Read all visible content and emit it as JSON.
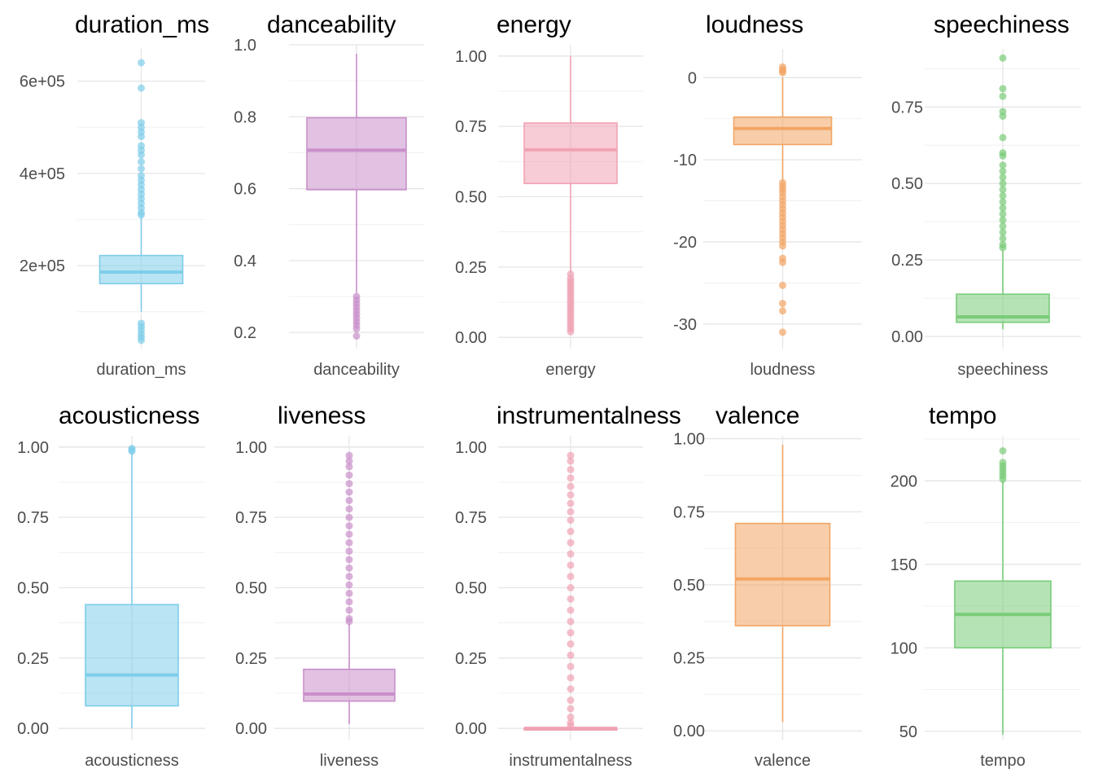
{
  "chart_data": [
    {
      "type": "boxplot",
      "title": "duration_ms",
      "category": "duration_ms",
      "color": "#7fcdea",
      "yticks": [
        200000,
        400000,
        600000
      ],
      "yticklabels": [
        "2e+05",
        "4e+05",
        "6e+05"
      ],
      "ylim": [
        20000,
        670000
      ],
      "box": {
        "lower_whisker": 100000,
        "q1": 161000,
        "median": 186000,
        "q3": 222000,
        "upper_whisker": 307000
      },
      "outliers": [
        640000,
        585000,
        510000,
        500000,
        490000,
        480000,
        460000,
        450000,
        440000,
        425000,
        410000,
        395000,
        385000,
        375000,
        365000,
        355000,
        345000,
        335000,
        325000,
        315000,
        310000,
        75000,
        68000,
        60000,
        52000,
        45000,
        38000
      ]
    },
    {
      "type": "boxplot",
      "title": "danceability",
      "category": "danceability",
      "color": "#c98fcb",
      "yticks": [
        0.2,
        0.4,
        0.6,
        0.8,
        1.0
      ],
      "yticklabels": [
        "0.2",
        "0.4",
        "0.6",
        "0.8",
        "1.0"
      ],
      "ylim": [
        0.155,
        1.0
      ],
      "box": {
        "lower_whisker": 0.31,
        "q1": 0.597,
        "median": 0.707,
        "q3": 0.797,
        "upper_whisker": 0.975
      },
      "outliers": [
        0.3,
        0.29,
        0.28,
        0.27,
        0.26,
        0.25,
        0.24,
        0.23,
        0.22,
        0.21,
        0.19
      ]
    },
    {
      "type": "boxplot",
      "title": "energy",
      "category": "energy",
      "color": "#f0a3b4",
      "yticks": [
        0,
        0.25,
        0.5,
        0.75,
        1.0
      ],
      "yticklabels": [
        "0.00",
        "0.25",
        "0.50",
        "0.75",
        "1.00"
      ],
      "ylim": [
        -0.04,
        1.04
      ],
      "box": {
        "lower_whisker": 0.23,
        "q1": 0.547,
        "median": 0.667,
        "q3": 0.762,
        "upper_whisker": 1.0
      },
      "outliers": [
        0.225,
        0.21,
        0.2,
        0.19,
        0.18,
        0.17,
        0.16,
        0.15,
        0.14,
        0.13,
        0.12,
        0.11,
        0.1,
        0.09,
        0.08,
        0.07,
        0.06,
        0.05,
        0.04,
        0.03,
        0.02
      ]
    },
    {
      "type": "boxplot",
      "title": "loudness",
      "category": "loudness",
      "color": "#f2a565",
      "yticks": [
        -30,
        -20,
        -10,
        0
      ],
      "yticklabels": [
        "-30",
        "-20",
        "-10",
        "0"
      ],
      "ylim": [
        -33,
        3.5
      ],
      "box": {
        "lower_whisker": -12.7,
        "q1": -8.15,
        "median": -6.2,
        "q3": -4.8,
        "upper_whisker": 0.0
      },
      "outliers": [
        1.3,
        1.0,
        0.8,
        0.6,
        -12.8,
        -13.2,
        -13.6,
        -14.0,
        -14.5,
        -15.0,
        -15.5,
        -16.0,
        -16.5,
        -17.0,
        -17.5,
        -18.0,
        -18.5,
        -19.0,
        -19.5,
        -20.0,
        -20.5,
        -22.0,
        -22.5,
        -25.3,
        -27.5,
        -28.4,
        -31.0
      ]
    },
    {
      "type": "boxplot",
      "title": "speechiness",
      "category": "speechiness",
      "color": "#79cc78",
      "yticks": [
        0,
        0.25,
        0.5,
        0.75
      ],
      "yticklabels": [
        "0.00",
        "0.25",
        "0.50",
        "0.75"
      ],
      "ylim": [
        -0.04,
        0.94
      ],
      "box": {
        "lower_whisker": 0.023,
        "q1": 0.046,
        "median": 0.064,
        "q3": 0.138,
        "upper_whisker": 0.28
      },
      "outliers": [
        0.91,
        0.81,
        0.785,
        0.735,
        0.72,
        0.65,
        0.6,
        0.59,
        0.56,
        0.54,
        0.52,
        0.5,
        0.48,
        0.46,
        0.44,
        0.42,
        0.4,
        0.38,
        0.36,
        0.34,
        0.32,
        0.3,
        0.29
      ]
    },
    {
      "type": "boxplot",
      "title": "acousticness",
      "category": "acousticness",
      "color": "#7fcdea",
      "yticks": [
        0,
        0.25,
        0.5,
        0.75,
        1.0
      ],
      "yticklabels": [
        "0.00",
        "0.25",
        "0.50",
        "0.75",
        "1.00"
      ],
      "ylim": [
        -0.04,
        1.04
      ],
      "box": {
        "lower_whisker": 0.0,
        "q1": 0.08,
        "median": 0.19,
        "q3": 0.44,
        "upper_whisker": 0.98
      },
      "outliers": [
        0.995,
        0.99,
        0.985
      ]
    },
    {
      "type": "boxplot",
      "title": "liveness",
      "category": "liveness",
      "color": "#c98fcb",
      "yticks": [
        0,
        0.25,
        0.5,
        0.75,
        1.0
      ],
      "yticklabels": [
        "0.00",
        "0.25",
        "0.50",
        "0.75",
        "1.00"
      ],
      "ylim": [
        -0.04,
        1.04
      ],
      "box": {
        "lower_whisker": 0.015,
        "q1": 0.097,
        "median": 0.122,
        "q3": 0.21,
        "upper_whisker": 0.37
      },
      "outliers": [
        0.97,
        0.95,
        0.93,
        0.9,
        0.87,
        0.84,
        0.81,
        0.78,
        0.75,
        0.72,
        0.69,
        0.66,
        0.63,
        0.6,
        0.57,
        0.54,
        0.51,
        0.48,
        0.45,
        0.42,
        0.39,
        0.38
      ]
    },
    {
      "type": "boxplot",
      "title": "instrumentalness",
      "category": "instrumentalness",
      "color": "#f0a3b4",
      "yticks": [
        0,
        0.25,
        0.5,
        0.75,
        1.0
      ],
      "yticklabels": [
        "0.00",
        "0.25",
        "0.50",
        "0.75",
        "1.00"
      ],
      "ylim": [
        -0.04,
        1.04
      ],
      "box": {
        "lower_whisker": 0.0,
        "q1": 0.0,
        "median": 0.0,
        "q3": 0.0,
        "upper_whisker": 0.0
      },
      "outliers": [
        0.97,
        0.95,
        0.92,
        0.89,
        0.86,
        0.83,
        0.8,
        0.77,
        0.74,
        0.7,
        0.66,
        0.62,
        0.58,
        0.54,
        0.5,
        0.46,
        0.42,
        0.38,
        0.34,
        0.3,
        0.26,
        0.22,
        0.18,
        0.14,
        0.1,
        0.07,
        0.04,
        0.02,
        0.01
      ]
    },
    {
      "type": "boxplot",
      "title": "valence",
      "category": "valence",
      "color": "#f2a565",
      "yticks": [
        0,
        0.25,
        0.5,
        0.75,
        1.0
      ],
      "yticklabels": [
        "0.00",
        "0.25",
        "0.50",
        "0.75",
        "1.00"
      ],
      "ylim": [
        -0.03,
        1.01
      ],
      "box": {
        "lower_whisker": 0.03,
        "q1": 0.36,
        "median": 0.52,
        "q3": 0.71,
        "upper_whisker": 0.98
      },
      "outliers": []
    },
    {
      "type": "boxplot",
      "title": "tempo",
      "category": "tempo",
      "color": "#79cc78",
      "yticks": [
        50,
        100,
        150,
        200
      ],
      "yticklabels": [
        "50",
        "100",
        "150",
        "200"
      ],
      "ylim": [
        45,
        227
      ],
      "box": {
        "lower_whisker": 48,
        "q1": 100,
        "median": 120,
        "q3": 140,
        "upper_whisker": 200
      },
      "outliers": [
        218,
        211,
        209,
        207,
        205,
        203,
        201
      ]
    }
  ]
}
